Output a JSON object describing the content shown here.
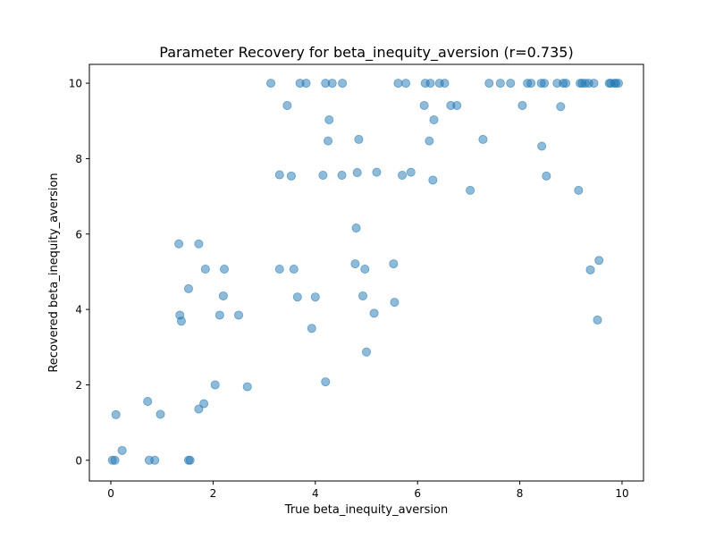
{
  "chart_data": {
    "type": "scatter",
    "title": "Parameter Recovery for beta_inequity_aversion (r=0.735)",
    "xlabel": "True beta_inequity_aversion",
    "ylabel": "Recovered beta_inequity_aversion",
    "xlim": [
      -0.42,
      10.42
    ],
    "ylim": [
      -0.55,
      10.5
    ],
    "xticks": [
      "0",
      "2",
      "4",
      "6",
      "8",
      "10"
    ],
    "yticks": [
      "0",
      "2",
      "4",
      "6",
      "8",
      "10"
    ],
    "grid": false,
    "marker_color": "#1f77b4",
    "marker_alpha": 0.5,
    "points": [
      [
        0.03,
        0.0
      ],
      [
        0.08,
        0.0
      ],
      [
        0.1,
        1.21
      ],
      [
        0.22,
        0.26
      ],
      [
        0.72,
        1.56
      ],
      [
        0.75,
        0.0
      ],
      [
        0.86,
        0.0
      ],
      [
        0.97,
        1.22
      ],
      [
        1.52,
        0.0
      ],
      [
        1.55,
        0.0
      ],
      [
        1.33,
        5.74
      ],
      [
        1.35,
        3.85
      ],
      [
        1.38,
        3.69
      ],
      [
        1.52,
        4.55
      ],
      [
        1.72,
        5.74
      ],
      [
        1.72,
        1.36
      ],
      [
        1.82,
        1.5
      ],
      [
        1.85,
        5.07
      ],
      [
        2.04,
        2.0
      ],
      [
        2.13,
        3.85
      ],
      [
        2.2,
        4.36
      ],
      [
        2.22,
        5.07
      ],
      [
        2.5,
        3.85
      ],
      [
        2.67,
        1.95
      ],
      [
        3.13,
        10.0
      ],
      [
        3.3,
        7.57
      ],
      [
        3.3,
        5.07
      ],
      [
        3.45,
        9.41
      ],
      [
        3.53,
        7.54
      ],
      [
        3.58,
        5.07
      ],
      [
        3.65,
        4.33
      ],
      [
        3.7,
        10.0
      ],
      [
        3.82,
        10.0
      ],
      [
        3.93,
        3.5
      ],
      [
        4.0,
        4.33
      ],
      [
        4.15,
        7.56
      ],
      [
        4.2,
        10.0
      ],
      [
        4.2,
        2.08
      ],
      [
        4.25,
        8.47
      ],
      [
        4.27,
        9.03
      ],
      [
        4.33,
        10.0
      ],
      [
        4.52,
        7.56
      ],
      [
        4.53,
        10.0
      ],
      [
        4.78,
        5.21
      ],
      [
        4.8,
        6.16
      ],
      [
        4.82,
        7.63
      ],
      [
        4.85,
        8.51
      ],
      [
        4.93,
        4.36
      ],
      [
        4.97,
        5.07
      ],
      [
        5.0,
        2.87
      ],
      [
        5.15,
        3.9
      ],
      [
        5.2,
        7.64
      ],
      [
        5.53,
        5.21
      ],
      [
        5.55,
        4.19
      ],
      [
        5.62,
        10.0
      ],
      [
        5.7,
        7.56
      ],
      [
        5.77,
        10.0
      ],
      [
        5.87,
        7.64
      ],
      [
        6.13,
        9.41
      ],
      [
        6.15,
        10.0
      ],
      [
        6.23,
        8.47
      ],
      [
        6.25,
        10.0
      ],
      [
        6.3,
        7.43
      ],
      [
        6.32,
        9.03
      ],
      [
        6.43,
        10.0
      ],
      [
        6.53,
        10.0
      ],
      [
        6.65,
        9.41
      ],
      [
        6.77,
        9.41
      ],
      [
        7.03,
        7.16
      ],
      [
        7.28,
        8.51
      ],
      [
        7.4,
        10.0
      ],
      [
        7.62,
        10.0
      ],
      [
        7.82,
        10.0
      ],
      [
        8.05,
        9.41
      ],
      [
        8.15,
        10.0
      ],
      [
        8.22,
        10.0
      ],
      [
        8.42,
        10.0
      ],
      [
        8.43,
        8.33
      ],
      [
        8.48,
        10.0
      ],
      [
        8.52,
        7.54
      ],
      [
        8.73,
        10.0
      ],
      [
        8.8,
        9.38
      ],
      [
        8.85,
        10.0
      ],
      [
        8.9,
        10.0
      ],
      [
        9.15,
        7.16
      ],
      [
        9.18,
        10.0
      ],
      [
        9.22,
        10.0
      ],
      [
        9.28,
        10.0
      ],
      [
        9.35,
        10.0
      ],
      [
        9.38,
        5.05
      ],
      [
        9.45,
        10.0
      ],
      [
        9.52,
        3.72
      ],
      [
        9.55,
        5.3
      ],
      [
        9.75,
        10.0
      ],
      [
        9.78,
        10.0
      ],
      [
        9.85,
        10.0
      ],
      [
        9.88,
        10.0
      ],
      [
        9.93,
        10.0
      ]
    ]
  }
}
